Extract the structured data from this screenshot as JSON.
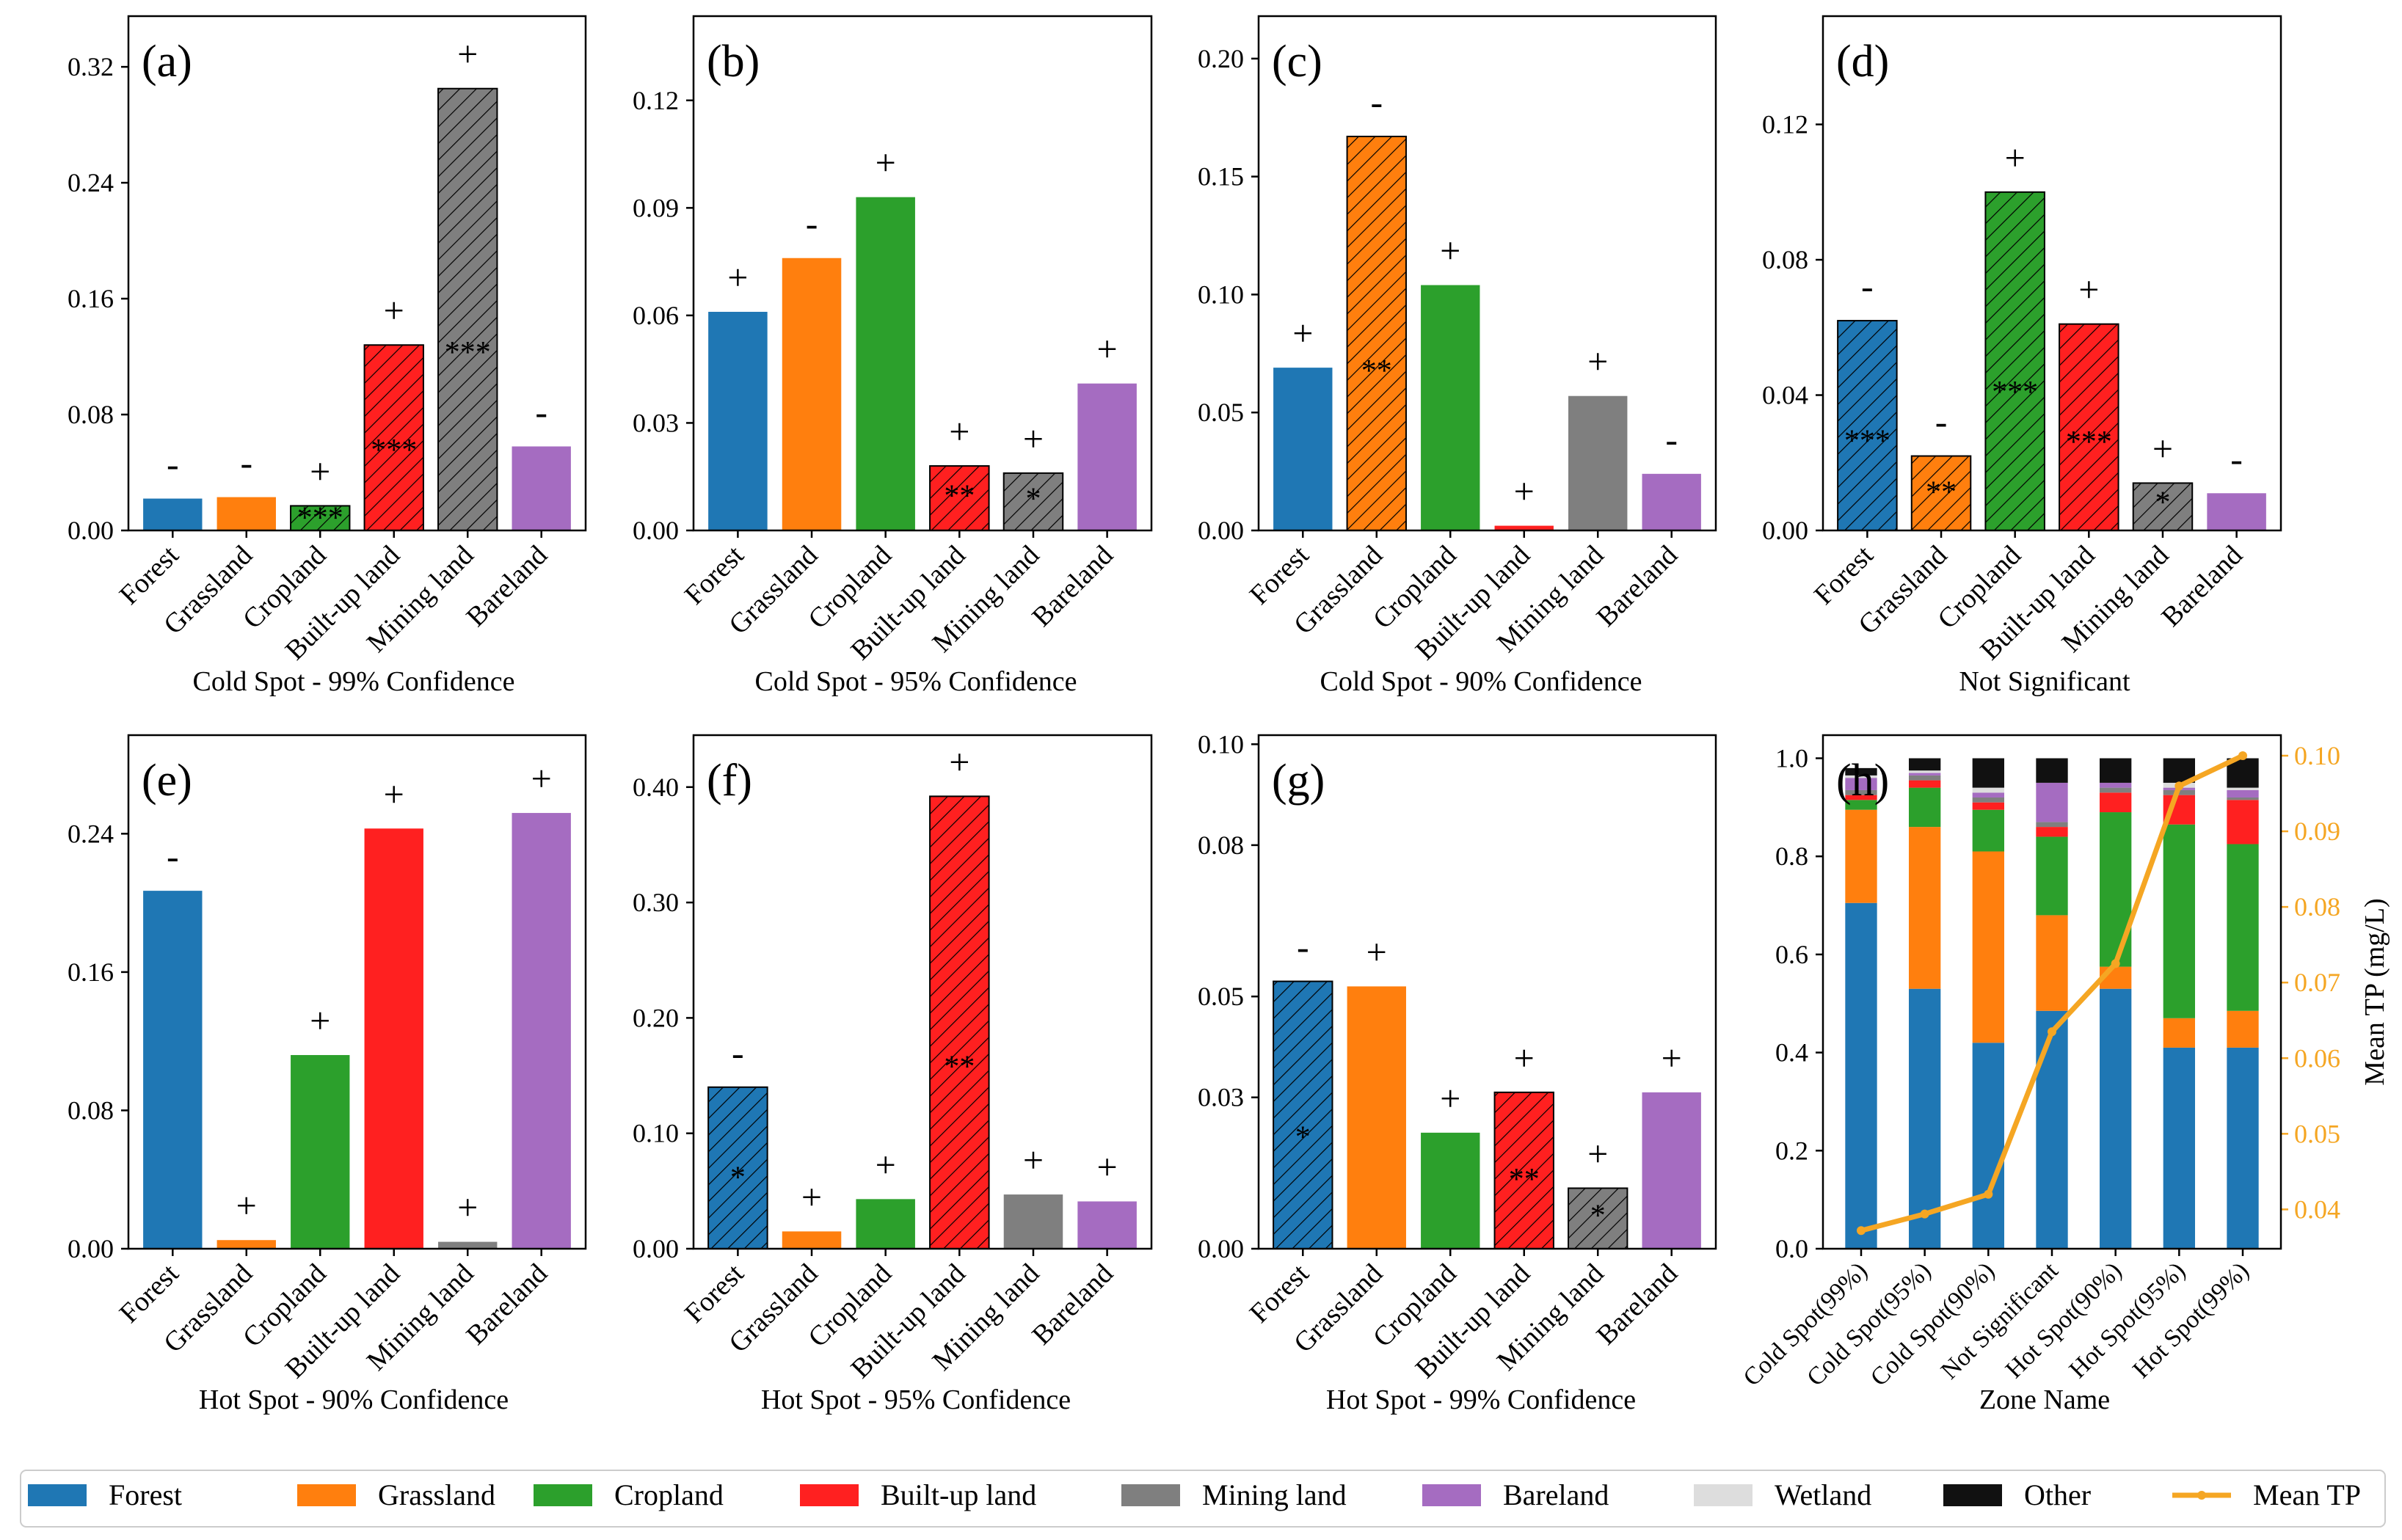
{
  "colors": {
    "Forest": "#1f77b4",
    "Grassland": "#ff7f0e",
    "Cropland": "#2ca02c",
    "Built-up land": "#ff2020",
    "Mining land": "#7f7f7f",
    "Bareland": "#a56cc1",
    "Wetland": "#dddddd",
    "Other": "#111111",
    "Mean TP": "#f5a623"
  },
  "legend": {
    "items": [
      {
        "label": "Forest",
        "kind": "box"
      },
      {
        "label": "Grassland",
        "kind": "box"
      },
      {
        "label": "Cropland",
        "kind": "box"
      },
      {
        "label": "Built-up land",
        "kind": "box"
      },
      {
        "label": "Mining land",
        "kind": "box"
      },
      {
        "label": "Bareland",
        "kind": "box"
      },
      {
        "label": "Wetland",
        "kind": "box"
      },
      {
        "label": "Other",
        "kind": "box"
      },
      {
        "label": "Mean TP",
        "kind": "line"
      }
    ]
  },
  "chart_data": [
    {
      "type": "bar",
      "letter": "(a)",
      "xlabel": "Cold Spot - 99% Confidence",
      "categories": [
        "Forest",
        "Grassland",
        "Cropland",
        "Built-up land",
        "Mining land",
        "Bareland"
      ],
      "values": [
        0.022,
        0.023,
        0.017,
        0.128,
        0.305,
        0.058
      ],
      "signs": [
        "-",
        "-",
        "+",
        "+",
        "+",
        "-"
      ],
      "stars": [
        "",
        "",
        "***",
        "***",
        "***",
        ""
      ],
      "hatched": [
        false,
        false,
        true,
        true,
        true,
        false
      ],
      "ylim": [
        0,
        0.355
      ],
      "yticks": [
        0,
        0.08,
        0.16,
        0.24,
        0.32
      ],
      "tick_labels": [
        "0.00",
        "0.08",
        "0.16",
        "0.24",
        "0.32"
      ]
    },
    {
      "type": "bar",
      "letter": "(b)",
      "xlabel": "Cold Spot - 95% Confidence",
      "categories": [
        "Forest",
        "Grassland",
        "Cropland",
        "Built-up land",
        "Mining land",
        "Bareland"
      ],
      "values": [
        0.061,
        0.076,
        0.093,
        0.018,
        0.016,
        0.041
      ],
      "signs": [
        "+",
        "-",
        "+",
        "+",
        "+",
        "+"
      ],
      "stars": [
        "",
        "",
        "",
        "**",
        "*",
        ""
      ],
      "hatched": [
        false,
        false,
        false,
        true,
        true,
        false
      ],
      "ylim": [
        0,
        0.1435
      ],
      "yticks": [
        0,
        0.03,
        0.06,
        0.09,
        0.12
      ],
      "tick_labels": [
        "0.00",
        "0.03",
        "0.06",
        "0.09",
        "0.12"
      ]
    },
    {
      "type": "bar",
      "letter": "(c)",
      "xlabel": "Cold Spot - 90% Confidence",
      "categories": [
        "Forest",
        "Grassland",
        "Cropland",
        "Built-up land",
        "Mining land",
        "Bareland"
      ],
      "values": [
        0.069,
        0.167,
        0.104,
        0.002,
        0.057,
        0.024
      ],
      "signs": [
        "+",
        "-",
        "+",
        "+",
        "+",
        "-"
      ],
      "stars": [
        "",
        "**",
        "",
        "",
        "",
        ""
      ],
      "hatched": [
        false,
        true,
        false,
        false,
        false,
        false
      ],
      "ylim": [
        0,
        0.218
      ],
      "yticks": [
        0,
        0.05,
        0.1,
        0.15,
        0.2
      ],
      "tick_labels": [
        "0.00",
        "0.05",
        "0.10",
        "0.15",
        "0.20"
      ]
    },
    {
      "type": "bar",
      "letter": "(d)",
      "xlabel": "Not Significant",
      "categories": [
        "Forest",
        "Grassland",
        "Cropland",
        "Built-up land",
        "Mining land",
        "Bareland"
      ],
      "values": [
        0.062,
        0.022,
        0.1,
        0.061,
        0.014,
        0.011
      ],
      "signs": [
        "-",
        "-",
        "+",
        "+",
        "+",
        "-"
      ],
      "stars": [
        "***",
        "**",
        "***",
        "***",
        "*",
        ""
      ],
      "hatched": [
        true,
        true,
        true,
        true,
        true,
        false
      ],
      "ylim": [
        0,
        0.152
      ],
      "yticks": [
        0,
        0.04,
        0.08,
        0.12
      ],
      "tick_labels": [
        "0.00",
        "0.04",
        "0.08",
        "0.12"
      ]
    },
    {
      "type": "bar",
      "letter": "(e)",
      "xlabel": "Hot Spot - 90% Confidence",
      "categories": [
        "Forest",
        "Grassland",
        "Cropland",
        "Built-up land",
        "Mining land",
        "Bareland"
      ],
      "values": [
        0.207,
        0.005,
        0.112,
        0.243,
        0.004,
        0.252
      ],
      "signs": [
        "-",
        "+",
        "+",
        "+",
        "+",
        "+"
      ],
      "stars": [
        "",
        "",
        "",
        "",
        "",
        ""
      ],
      "hatched": [
        false,
        false,
        false,
        false,
        false,
        false
      ],
      "ylim": [
        0,
        0.297
      ],
      "yticks": [
        0,
        0.08,
        0.16,
        0.24
      ],
      "tick_labels": [
        "0.00",
        "0.08",
        "0.16",
        "0.24"
      ]
    },
    {
      "type": "bar",
      "letter": "(f)",
      "xlabel": "Hot Spot - 95% Confidence",
      "categories": [
        "Forest",
        "Grassland",
        "Cropland",
        "Built-up land",
        "Mining land",
        "Bareland"
      ],
      "values": [
        0.14,
        0.015,
        0.043,
        0.392,
        0.047,
        0.041
      ],
      "signs": [
        "-",
        "+",
        "+",
        "+",
        "+",
        "+"
      ],
      "stars": [
        "*",
        "",
        "",
        "**",
        "",
        ""
      ],
      "hatched": [
        true,
        false,
        false,
        true,
        false,
        false
      ],
      "ylim": [
        0,
        0.445
      ],
      "yticks": [
        0,
        0.1,
        0.2,
        0.3,
        0.4
      ],
      "tick_labels": [
        "0.00",
        "0.10",
        "0.20",
        "0.30",
        "0.40"
      ]
    },
    {
      "type": "bar",
      "letter": "(g)",
      "xlabel": "Hot Spot - 99% Confidence",
      "categories": [
        "Forest",
        "Grassland",
        "Cropland",
        "Built-up land",
        "Mining land",
        "Bareland"
      ],
      "values": [
        0.053,
        0.052,
        0.023,
        0.031,
        0.012,
        0.031
      ],
      "signs": [
        "-",
        "+",
        "+",
        "+",
        "+",
        "+"
      ],
      "stars": [
        "*",
        "",
        "",
        "**",
        "*",
        ""
      ],
      "hatched": [
        true,
        false,
        false,
        true,
        true,
        false
      ],
      "ylim": [
        0,
        0.1018
      ],
      "yticks": [
        0,
        0.03,
        0.05,
        0.08,
        0.1
      ],
      "tick_labels": [
        "0.00",
        "0.03",
        "0.05",
        "0.08",
        "0.10"
      ]
    },
    {
      "type": "stacked-bar+line",
      "letter": "(h)",
      "xlabel": "Zone Name",
      "ylabel_right": "Mean TP (mg/L)",
      "categories": [
        "Cold Spot(99%)",
        "Cold Spot(95%)",
        "Cold Spot(90%)",
        "Not Significant",
        "Hot Spot(90%)",
        "Hot Spot(95%)",
        "Hot Spot(99%)"
      ],
      "stack_order": [
        "Forest",
        "Grassland",
        "Cropland",
        "Built-up land",
        "Mining land",
        "Bareland",
        "Wetland",
        "Other"
      ],
      "series": [
        {
          "name": "Forest",
          "values": [
            0.705,
            0.53,
            0.42,
            0.485,
            0.53,
            0.41,
            0.41
          ]
        },
        {
          "name": "Grassland",
          "values": [
            0.19,
            0.33,
            0.39,
            0.195,
            0.045,
            0.06,
            0.075
          ]
        },
        {
          "name": "Cropland",
          "values": [
            0.02,
            0.08,
            0.085,
            0.16,
            0.315,
            0.395,
            0.34
          ]
        },
        {
          "name": "Built-up land",
          "values": [
            0.01,
            0.015,
            0.015,
            0.02,
            0.04,
            0.06,
            0.09
          ]
        },
        {
          "name": "Mining land",
          "values": [
            0.01,
            0.01,
            0.01,
            0.01,
            0.01,
            0.01,
            0.005
          ]
        },
        {
          "name": "Bareland",
          "values": [
            0.025,
            0.005,
            0.01,
            0.08,
            0.01,
            0.005,
            0.015
          ]
        },
        {
          "name": "Wetland",
          "values": [
            0.005,
            0.005,
            0.01,
            0.0,
            0.0,
            0.01,
            0.005
          ]
        },
        {
          "name": "Other",
          "values": [
            0.015,
            0.025,
            0.06,
            0.05,
            0.05,
            0.05,
            0.06
          ]
        }
      ],
      "line": {
        "name": "Mean TP",
        "values": [
          0.0372,
          0.0394,
          0.042,
          0.0635,
          0.0725,
          0.096,
          0.1
        ]
      },
      "ylim_left": [
        0,
        1.0
      ],
      "yticks_left": [
        0,
        0.2,
        0.4,
        0.6,
        0.8,
        1.0
      ],
      "tick_labels_left": [
        "0.0",
        "0.2",
        "0.4",
        "0.6",
        "0.8",
        "1.0"
      ],
      "ylim_right": [
        0.0348,
        0.1
      ],
      "yticks_right": [
        0.04,
        0.05,
        0.06,
        0.07,
        0.08,
        0.09,
        0.1
      ],
      "tick_labels_right": [
        "0.04",
        "0.05",
        "0.06",
        "0.07",
        "0.08",
        "0.09",
        "0.10"
      ]
    }
  ]
}
